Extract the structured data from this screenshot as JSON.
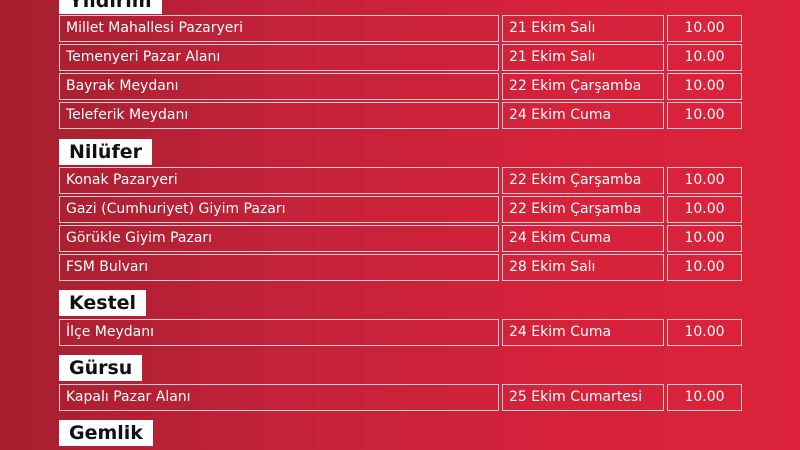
{
  "districts": [
    {
      "name": "Yıldırım",
      "rows": [
        {
          "place": "Millet Mahallesi Pazaryeri",
          "date": "21 Ekim Salı",
          "time": "10.00"
        },
        {
          "place": "Temenyeri Pazar Alanı",
          "date": "21 Ekim Salı",
          "time": "10.00"
        },
        {
          "place": "Bayrak Meydanı",
          "date": "22 Ekim Çarşamba",
          "time": "10.00"
        },
        {
          "place": "Teleferik Meydanı",
          "date": "24 Ekim Cuma",
          "time": "10.00"
        }
      ]
    },
    {
      "name": "Nilüfer",
      "rows": [
        {
          "place": "Konak Pazaryeri",
          "date": "22 Ekim Çarşamba",
          "time": "10.00"
        },
        {
          "place": "Gazi (Cumhuriyet) Giyim Pazarı",
          "date": "22 Ekim Çarşamba",
          "time": "10.00"
        },
        {
          "place": "Görükle Giyim Pazarı",
          "date": "24 Ekim Cuma",
          "time": "10.00"
        },
        {
          "place": "FSM Bulvarı",
          "date": "28 Ekim Salı",
          "time": "10.00"
        }
      ]
    },
    {
      "name": "Kestel",
      "rows": [
        {
          "place": "İlçe Meydanı",
          "date": "24 Ekim Cuma",
          "time": "10.00"
        }
      ]
    },
    {
      "name": "Gürsu",
      "rows": [
        {
          "place": "Kapalı Pazar Alanı",
          "date": "25 Ekim Cumartesi",
          "time": "10.00"
        }
      ]
    },
    {
      "name": "Gemlik",
      "rows": []
    }
  ]
}
